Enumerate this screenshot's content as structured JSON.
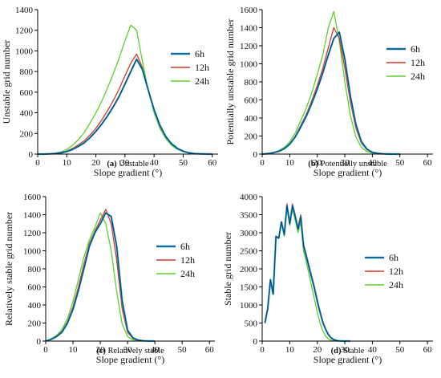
{
  "legend_labels": [
    "6h",
    "12h",
    "24h"
  ],
  "colors": {
    "6h": "#1f9bd7",
    "12h": "#d2382b",
    "24h": "#5ccf2a",
    "6h_dark": "#0c3550",
    "axis": "#000000"
  },
  "chart_data": [
    {
      "type": "line",
      "title": "",
      "caption_letter": "(a)",
      "caption_text": " Unstable",
      "xlabel": "Slope gradient (°)",
      "ylabel": "Unstable grid number",
      "xlim": [
        0,
        62
      ],
      "ylim": [
        0,
        1400
      ],
      "xticks": [
        0,
        10,
        20,
        30,
        40,
        50,
        60
      ],
      "yticks": [
        0,
        200,
        400,
        600,
        800,
        1000,
        1200,
        1400
      ],
      "legend_position": "right",
      "series": [
        {
          "name": "6h",
          "x": [
            0,
            2,
            4,
            6,
            8,
            10,
            12,
            14,
            16,
            18,
            20,
            22,
            24,
            26,
            28,
            30,
            32,
            34,
            36,
            38,
            40,
            42,
            44,
            46,
            48,
            50,
            52,
            54,
            56,
            58,
            60
          ],
          "y": [
            0,
            0,
            2,
            5,
            12,
            25,
            45,
            75,
            110,
            160,
            220,
            290,
            370,
            460,
            560,
            680,
            800,
            920,
            820,
            620,
            430,
            280,
            170,
            100,
            55,
            28,
            12,
            5,
            2,
            1,
            0
          ]
        },
        {
          "name": "12h",
          "x": [
            0,
            2,
            4,
            6,
            8,
            10,
            12,
            14,
            16,
            18,
            20,
            22,
            24,
            26,
            28,
            30,
            32,
            34,
            36,
            38,
            40,
            42,
            44,
            46,
            48,
            50,
            52,
            54,
            56,
            58,
            60
          ],
          "y": [
            0,
            0,
            3,
            6,
            14,
            30,
            55,
            90,
            130,
            185,
            250,
            330,
            420,
            520,
            630,
            760,
            880,
            970,
            840,
            620,
            420,
            270,
            165,
            98,
            52,
            26,
            11,
            5,
            2,
            1,
            0
          ]
        },
        {
          "name": "24h",
          "x": [
            0,
            2,
            4,
            6,
            8,
            10,
            12,
            14,
            16,
            18,
            20,
            22,
            24,
            26,
            28,
            30,
            32,
            34,
            36,
            38,
            40,
            42,
            44,
            46,
            48,
            50,
            52,
            54,
            56,
            58,
            60
          ],
          "y": [
            0,
            0,
            4,
            10,
            22,
            45,
            85,
            140,
            210,
            300,
            400,
            510,
            640,
            780,
            930,
            1100,
            1250,
            1200,
            900,
            620,
            400,
            250,
            150,
            85,
            45,
            22,
            10,
            4,
            2,
            1,
            0
          ]
        }
      ]
    },
    {
      "type": "line",
      "title": "",
      "caption_letter": "(b)",
      "caption_text": " Potentially unstable",
      "xlabel": "Slope gradient (°)",
      "ylabel": "Potentially unstable grid number",
      "xlim": [
        0,
        62
      ],
      "ylim": [
        0,
        1600
      ],
      "xticks": [
        0,
        10,
        20,
        30,
        40,
        50,
        60
      ],
      "yticks": [
        0,
        200,
        400,
        600,
        800,
        1000,
        1200,
        1400,
        1600
      ],
      "legend_position": "right",
      "series": [
        {
          "name": "6h",
          "x": [
            0,
            2,
            4,
            6,
            8,
            10,
            12,
            14,
            16,
            18,
            20,
            22,
            24,
            26,
            28,
            30,
            32,
            34,
            36,
            38,
            40,
            42,
            44,
            46,
            48,
            50
          ],
          "y": [
            0,
            5,
            15,
            30,
            60,
            110,
            190,
            300,
            420,
            560,
            720,
            900,
            1100,
            1280,
            1350,
            1050,
            650,
            330,
            140,
            55,
            20,
            8,
            3,
            1,
            0,
            0
          ]
        },
        {
          "name": "12h",
          "x": [
            0,
            2,
            4,
            6,
            8,
            10,
            12,
            14,
            16,
            18,
            20,
            22,
            24,
            26,
            28,
            30,
            32,
            34,
            36,
            38,
            40,
            42,
            44,
            46,
            48,
            50
          ],
          "y": [
            0,
            5,
            16,
            32,
            65,
            115,
            200,
            320,
            440,
            590,
            760,
            950,
            1180,
            1400,
            1280,
            950,
            580,
            290,
            120,
            48,
            18,
            7,
            3,
            1,
            0,
            0
          ]
        },
        {
          "name": "24h",
          "x": [
            0,
            2,
            4,
            6,
            8,
            10,
            12,
            14,
            16,
            18,
            20,
            22,
            24,
            26,
            28,
            30,
            32,
            34,
            36,
            38,
            40,
            42,
            44,
            46,
            48,
            50
          ],
          "y": [
            0,
            6,
            18,
            38,
            75,
            135,
            235,
            370,
            510,
            680,
            880,
            1100,
            1400,
            1580,
            1250,
            800,
            430,
            190,
            75,
            28,
            10,
            4,
            2,
            1,
            0,
            0
          ]
        }
      ]
    },
    {
      "type": "line",
      "title": "",
      "caption_letter": "(c)",
      "caption_text": " Relatively stable",
      "xlabel": "Slope gradient (°)",
      "ylabel": "Relatively stable grid number",
      "xlim": [
        0,
        62
      ],
      "ylim": [
        0,
        1600
      ],
      "xticks": [
        0,
        10,
        20,
        30,
        40,
        50,
        60
      ],
      "yticks": [
        0,
        200,
        400,
        600,
        800,
        1000,
        1200,
        1400,
        1600
      ],
      "legend_position": "right",
      "series": [
        {
          "name": "6h",
          "x": [
            0,
            2,
            4,
            6,
            8,
            10,
            12,
            14,
            16,
            18,
            20,
            22,
            24,
            26,
            28,
            30,
            32,
            34,
            36,
            38,
            40
          ],
          "y": [
            0,
            20,
            50,
            100,
            200,
            350,
            560,
            800,
            1050,
            1200,
            1300,
            1420,
            1380,
            1050,
            450,
            120,
            35,
            10,
            3,
            1,
            0
          ]
        },
        {
          "name": "12h",
          "x": [
            0,
            2,
            4,
            6,
            8,
            10,
            12,
            14,
            16,
            18,
            20,
            22,
            24,
            26,
            28,
            30,
            32,
            34,
            36,
            38,
            40
          ],
          "y": [
            0,
            22,
            55,
            110,
            215,
            380,
            600,
            850,
            1080,
            1220,
            1340,
            1460,
            1300,
            900,
            360,
            95,
            28,
            8,
            2,
            1,
            0
          ]
        },
        {
          "name": "24h",
          "x": [
            0,
            2,
            4,
            6,
            8,
            10,
            12,
            14,
            16,
            18,
            20,
            22,
            24,
            26,
            28,
            30,
            32,
            34,
            36,
            38,
            40
          ],
          "y": [
            0,
            25,
            65,
            130,
            250,
            440,
            680,
            930,
            1120,
            1260,
            1420,
            1300,
            1000,
            550,
            190,
            50,
            14,
            4,
            1,
            0,
            0
          ]
        }
      ]
    },
    {
      "type": "line",
      "title": "",
      "caption_letter": "(d)",
      "caption_text": " Stable",
      "xlabel": "Slope gradient (°)",
      "ylabel": "Stable grid number",
      "xlim": [
        0,
        62
      ],
      "ylim": [
        0,
        4000
      ],
      "xticks": [
        0,
        10,
        20,
        30,
        40,
        50,
        60
      ],
      "yticks": [
        0,
        500,
        1000,
        1500,
        2000,
        2500,
        3000,
        3500,
        4000
      ],
      "legend_position": "right",
      "series": [
        {
          "name": "6h",
          "x": [
            1,
            2,
            3,
            4,
            5,
            6,
            7,
            8,
            9,
            10,
            11,
            12,
            13,
            14,
            15,
            16,
            17,
            18,
            19,
            20,
            21,
            22,
            23,
            24,
            25,
            26,
            27,
            28,
            29,
            30,
            31,
            32
          ],
          "y": [
            500,
            900,
            1700,
            1300,
            2900,
            2850,
            3300,
            2950,
            3750,
            3250,
            3750,
            3450,
            3100,
            3450,
            2650,
            2350,
            2050,
            1750,
            1450,
            1100,
            800,
            520,
            330,
            180,
            90,
            40,
            15,
            5,
            2,
            1,
            0,
            0
          ]
        },
        {
          "name": "12h",
          "x": [
            1,
            2,
            3,
            4,
            5,
            6,
            7,
            8,
            9,
            10,
            11,
            12,
            13,
            14,
            15,
            16,
            17,
            18,
            19,
            20,
            21,
            22,
            23,
            24,
            25,
            26,
            27,
            28,
            29,
            30,
            31,
            32
          ],
          "y": [
            500,
            900,
            1700,
            1300,
            2900,
            2850,
            3300,
            2950,
            3800,
            3300,
            3800,
            3500,
            3150,
            3500,
            2700,
            2400,
            2100,
            1800,
            1500,
            1150,
            840,
            550,
            350,
            190,
            95,
            42,
            16,
            5,
            2,
            1,
            0,
            0
          ]
        },
        {
          "name": "24h",
          "x": [
            1,
            2,
            3,
            4,
            5,
            6,
            7,
            8,
            9,
            10,
            11,
            12,
            13,
            14,
            15,
            16,
            17,
            18,
            19,
            20,
            21,
            22,
            23,
            24,
            25,
            26,
            27,
            28,
            29,
            30,
            31,
            32
          ],
          "y": [
            500,
            900,
            1700,
            1300,
            2900,
            2850,
            3300,
            2900,
            3700,
            3200,
            3650,
            3350,
            3000,
            3300,
            2500,
            2200,
            1850,
            1500,
            1150,
            800,
            500,
            280,
            140,
            60,
            25,
            10,
            4,
            1,
            0,
            0,
            0,
            0
          ]
        }
      ]
    }
  ]
}
